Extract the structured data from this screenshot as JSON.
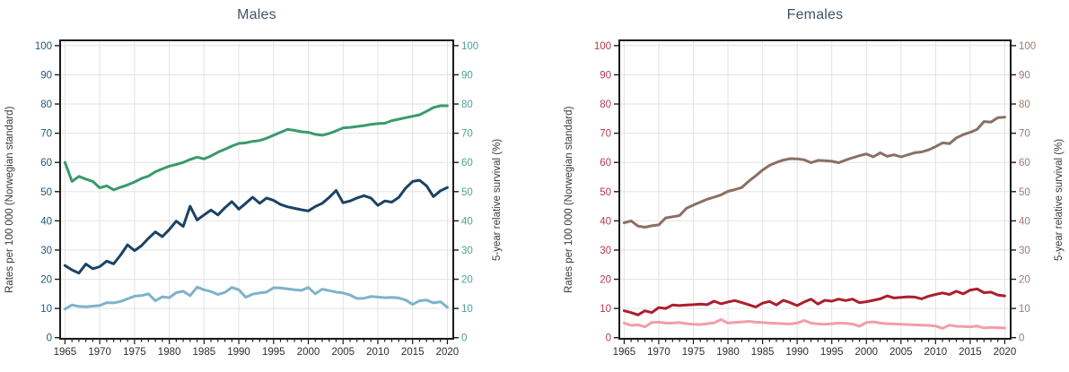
{
  "figure": {
    "background": "#ffffff"
  },
  "chart_data": [
    {
      "type": "line",
      "title": "Males",
      "x_start": 1965,
      "x_end": 2020,
      "xticks": [
        1965,
        1970,
        1975,
        1980,
        1985,
        1990,
        1995,
        2000,
        2005,
        2010,
        2015,
        2020
      ],
      "x_minor_step": 1,
      "ylabel_left": "Rates per 100 000 (Norwegian standard)",
      "ylabel_right": "5-year relative survival (%)",
      "ylim": [
        0,
        100
      ],
      "yticks": [
        0,
        10,
        20,
        30,
        40,
        50,
        60,
        70,
        80,
        90,
        100
      ],
      "grid": true,
      "legend": "none",
      "colors": {
        "title": "#415469",
        "left_ticks": "#1e5878",
        "right_ticks": "#4ba394",
        "x_ticks": "#2e2e2e",
        "axis_label": "#3a3a3a",
        "grid": "#e3e3e3",
        "frame": "#1a1a1a",
        "background": "#ffffff"
      },
      "series": [
        {
          "id": "survival-green-line",
          "axis": "right",
          "color": "#3a9a6c",
          "values": [
            60.0,
            53.5,
            55.2,
            54.3,
            53.5,
            51.3,
            52.0,
            50.6,
            51.5,
            52.3,
            53.3,
            54.5,
            55.3,
            56.8,
            57.8,
            58.7,
            59.3,
            60.0,
            61.0,
            61.8,
            61.2,
            62.2,
            63.5,
            64.5,
            65.6,
            66.5,
            66.7,
            67.2,
            67.5,
            68.3,
            69.3,
            70.3,
            71.3,
            71.0,
            70.5,
            70.3,
            69.6,
            69.3,
            69.9,
            70.8,
            71.8,
            72.0,
            72.3,
            72.6,
            73.0,
            73.3,
            73.4,
            74.3,
            74.8,
            75.3,
            75.8,
            76.3,
            77.5,
            78.8,
            79.4,
            79.4
          ]
        },
        {
          "id": "rate-dark-blue-line",
          "axis": "left",
          "color": "#1b4263",
          "values": [
            24.7,
            23.2,
            22.1,
            25.2,
            23.6,
            24.3,
            26.2,
            25.3,
            28.3,
            31.8,
            29.8,
            31.5,
            34.0,
            36.2,
            34.6,
            37.0,
            39.9,
            38.1,
            45.0,
            40.3,
            42.0,
            43.7,
            42.0,
            44.5,
            46.6,
            44.0,
            46.0,
            48.1,
            46.0,
            47.8,
            47.0,
            45.6,
            44.8,
            44.3,
            43.8,
            43.4,
            44.9,
            46.0,
            48.0,
            50.4,
            46.2,
            46.8,
            47.8,
            48.6,
            47.8,
            45.3,
            46.8,
            46.4,
            48.0,
            51.2,
            53.5,
            53.9,
            52.0,
            48.3,
            50.3,
            51.4
          ]
        },
        {
          "id": "rate-light-blue-line",
          "axis": "left",
          "color": "#7fb2cb",
          "values": [
            9.8,
            11.2,
            10.7,
            10.6,
            10.8,
            11.0,
            12.0,
            11.9,
            12.4,
            13.3,
            14.2,
            14.4,
            15.0,
            12.6,
            14.0,
            13.7,
            15.4,
            15.9,
            14.4,
            17.3,
            16.4,
            15.8,
            14.8,
            15.5,
            17.2,
            16.4,
            13.8,
            14.9,
            15.3,
            15.6,
            17.1,
            17.0,
            16.7,
            16.4,
            16.2,
            17.2,
            15.0,
            16.6,
            16.1,
            15.6,
            15.3,
            14.6,
            13.4,
            13.5,
            14.1,
            13.9,
            13.7,
            13.8,
            13.6,
            12.9,
            11.4,
            12.6,
            12.9,
            11.9,
            12.3,
            10.4
          ]
        }
      ]
    },
    {
      "type": "line",
      "title": "Females",
      "x_start": 1965,
      "x_end": 2020,
      "xticks": [
        1965,
        1970,
        1975,
        1980,
        1985,
        1990,
        1995,
        2000,
        2005,
        2010,
        2015,
        2020
      ],
      "x_minor_step": 1,
      "ylabel_left": "Rates per 100 000 (Norwegian standard)",
      "ylabel_right": "5-year relative survival (%)",
      "ylim": [
        0,
        100
      ],
      "yticks": [
        0,
        10,
        20,
        30,
        40,
        50,
        60,
        70,
        80,
        90,
        100
      ],
      "grid": true,
      "legend": "none",
      "colors": {
        "title": "#415469",
        "left_ticks": "#b83a4d",
        "right_ticks": "#9b7b71",
        "x_ticks": "#2e2e2e",
        "axis_label": "#3a3a3a",
        "grid": "#e3e3e3",
        "frame": "#1a1a1a",
        "background": "#ffffff"
      },
      "series": [
        {
          "id": "survival-brown-line",
          "axis": "right",
          "color": "#8b6f64",
          "values": [
            39.3,
            40.0,
            38.2,
            37.8,
            38.3,
            38.6,
            41.0,
            41.4,
            41.8,
            44.3,
            45.4,
            46.4,
            47.4,
            48.1,
            48.9,
            50.1,
            50.7,
            51.4,
            53.6,
            55.4,
            57.4,
            59.0,
            60.0,
            60.8,
            61.3,
            61.2,
            60.9,
            59.9,
            60.7,
            60.6,
            60.4,
            59.9,
            60.8,
            61.6,
            62.3,
            62.9,
            61.9,
            63.3,
            62.1,
            62.6,
            61.9,
            62.6,
            63.3,
            63.6,
            64.3,
            65.4,
            66.7,
            66.4,
            68.4,
            69.5,
            70.3,
            71.3,
            74.0,
            73.8,
            75.3,
            75.5
          ]
        },
        {
          "id": "rate-dark-red-line",
          "axis": "left",
          "color": "#ac1e2e",
          "values": [
            9.2,
            8.6,
            7.8,
            9.2,
            8.6,
            10.3,
            10.0,
            11.2,
            11.0,
            11.2,
            11.3,
            11.5,
            11.3,
            12.5,
            11.6,
            12.2,
            12.7,
            12.0,
            11.3,
            10.5,
            11.8,
            12.4,
            11.2,
            12.8,
            12.0,
            11.0,
            12.2,
            13.2,
            11.5,
            12.8,
            12.5,
            13.2,
            12.7,
            13.2,
            12.0,
            12.3,
            12.8,
            13.3,
            14.3,
            13.6,
            13.8,
            14.0,
            13.9,
            13.3,
            14.2,
            14.8,
            15.3,
            14.8,
            15.9,
            15.0,
            16.3,
            16.7,
            15.4,
            15.6,
            14.6,
            14.3
          ]
        },
        {
          "id": "rate-pink-line",
          "axis": "left",
          "color": "#f29daa",
          "values": [
            5.0,
            4.2,
            4.4,
            3.7,
            5.2,
            5.3,
            5.0,
            5.0,
            5.2,
            4.8,
            4.6,
            4.5,
            4.8,
            5.1,
            6.2,
            5.0,
            5.2,
            5.4,
            5.6,
            5.3,
            5.2,
            5.0,
            4.9,
            4.8,
            4.7,
            5.0,
            5.9,
            5.0,
            4.7,
            4.6,
            4.8,
            5.0,
            4.9,
            4.7,
            3.9,
            5.2,
            5.4,
            5.0,
            4.8,
            4.7,
            4.6,
            4.5,
            4.4,
            4.3,
            4.2,
            4.0,
            3.2,
            4.3,
            3.9,
            3.8,
            3.7,
            4.0,
            3.3,
            3.5,
            3.4,
            3.3
          ]
        }
      ]
    }
  ]
}
